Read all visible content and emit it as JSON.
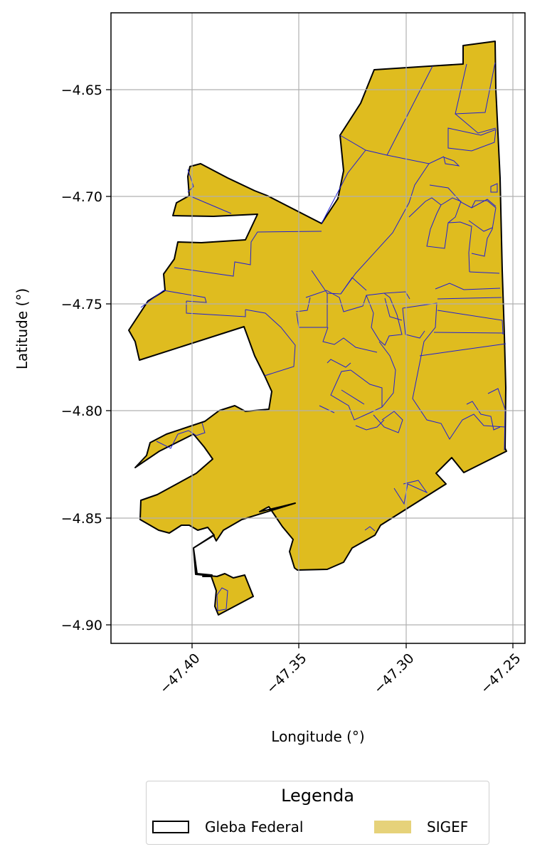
{
  "map": {
    "xlabel": "Longitude (°)",
    "ylabel": "Latitude (°)",
    "x_ticks": [
      "−47.40",
      "−47.35",
      "−47.30",
      "−47.25"
    ],
    "y_ticks": [
      "−4.65",
      "−4.70",
      "−4.75",
      "−4.80",
      "−4.85",
      "−4.90"
    ],
    "x_tick_values": [
      -47.4,
      -47.35,
      -47.3,
      -47.25
    ],
    "y_tick_values": [
      -4.65,
      -4.7,
      -4.75,
      -4.8,
      -4.85,
      -4.9
    ],
    "xlim": [
      -47.438,
      -47.244
    ],
    "ylim": [
      -4.909,
      -4.615
    ],
    "grid": true,
    "colors": {
      "fill": "#dfbc1f",
      "boundary": "#000000",
      "parcels": "#1f1fd6",
      "grid": "#b0b0b0"
    }
  },
  "legend": {
    "title": "Legenda",
    "items": [
      {
        "label": "Gleba Federal",
        "color": "#000000"
      },
      {
        "label": "SIGEF",
        "color": "#e6d27a"
      }
    ]
  }
}
